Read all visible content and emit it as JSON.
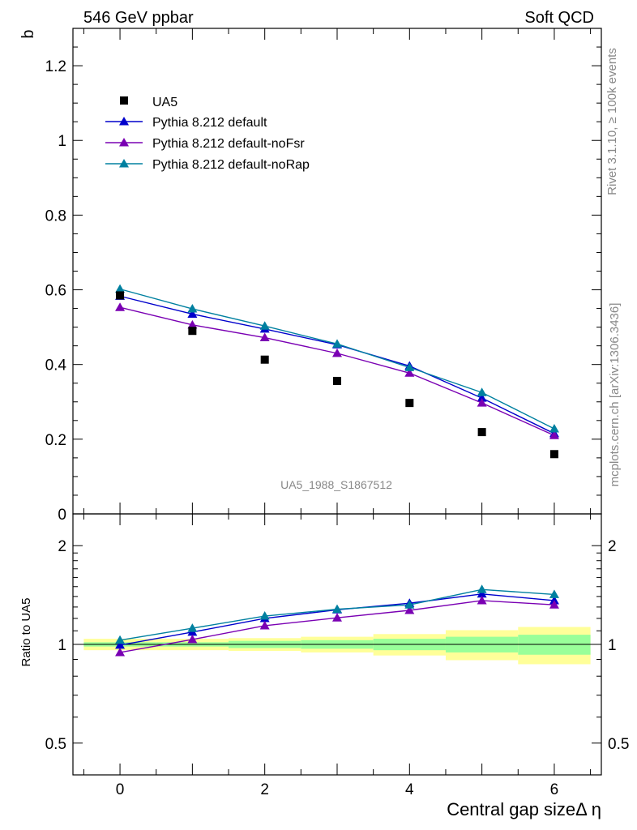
{
  "header": {
    "left_title": "546 GeV ppbar",
    "right_title": "Soft QCD"
  },
  "side": {
    "rivet": "Rivet 3.1.10, ≥ 100k events",
    "mcplots": "mcplots.cern.ch [arXiv:1306.3436]"
  },
  "chart_data": {
    "type": "line",
    "title": "546 GeV ppbar",
    "analysis_id": "UA5_1988_S1867512",
    "xlabel": "Central gap sizeΔ η",
    "ylabel": "b",
    "ratio_ylabel": "Ratio to UA5",
    "xlim": [
      -0.65,
      6.65
    ],
    "ylim": [
      0,
      1.3
    ],
    "ratio_ylim": [
      0.4,
      2.5
    ],
    "x_ticks": [
      "0",
      "2",
      "4",
      "6"
    ],
    "y_ticks": [
      "0",
      "0.2",
      "0.4",
      "0.6",
      "0.8",
      "1",
      "1.2"
    ],
    "ratio_ticks": [
      "0.5",
      "1",
      "2"
    ],
    "x": [
      0,
      1,
      2,
      3,
      4,
      5,
      6
    ],
    "data": {
      "name": "UA5",
      "values": [
        0.585,
        0.49,
        0.413,
        0.356,
        0.297,
        0.219,
        0.16
      ]
    },
    "series": [
      {
        "name": "Pythia 8.212 default",
        "color": "#0000cc",
        "values": [
          0.583,
          0.535,
          0.495,
          0.453,
          0.396,
          0.31,
          0.215
        ],
        "ratio": [
          0.995,
          1.09,
          1.2,
          1.275,
          1.335,
          1.425,
          1.36
        ]
      },
      {
        "name": "Pythia 8.212 default-noFsr",
        "color": "#7a00b3",
        "values": [
          0.553,
          0.506,
          0.472,
          0.43,
          0.377,
          0.297,
          0.21
        ],
        "ratio": [
          0.945,
          1.035,
          1.14,
          1.205,
          1.27,
          1.36,
          1.32
        ]
      },
      {
        "name": "Pythia 8.212 default-noRap",
        "color": "#0080a0",
        "values": [
          0.602,
          0.549,
          0.503,
          0.455,
          0.392,
          0.325,
          0.228
        ],
        "ratio": [
          1.03,
          1.12,
          1.22,
          1.28,
          1.32,
          1.47,
          1.42
        ]
      }
    ],
    "bands": {
      "x_edges": [
        -0.5,
        0.5,
        1.5,
        2.5,
        3.5,
        4.5,
        5.5,
        6.5
      ],
      "stat_low": [
        0.985,
        0.985,
        0.975,
        0.97,
        0.96,
        0.945,
        0.93
      ],
      "stat_high": [
        1.015,
        1.015,
        1.025,
        1.03,
        1.04,
        1.055,
        1.07
      ],
      "syst_low": [
        0.96,
        0.96,
        0.955,
        0.945,
        0.925,
        0.895,
        0.87
      ],
      "syst_high": [
        1.04,
        1.04,
        1.045,
        1.055,
        1.075,
        1.105,
        1.13
      ],
      "stat_color": "#99ff99",
      "syst_color": "#ffff99"
    }
  }
}
